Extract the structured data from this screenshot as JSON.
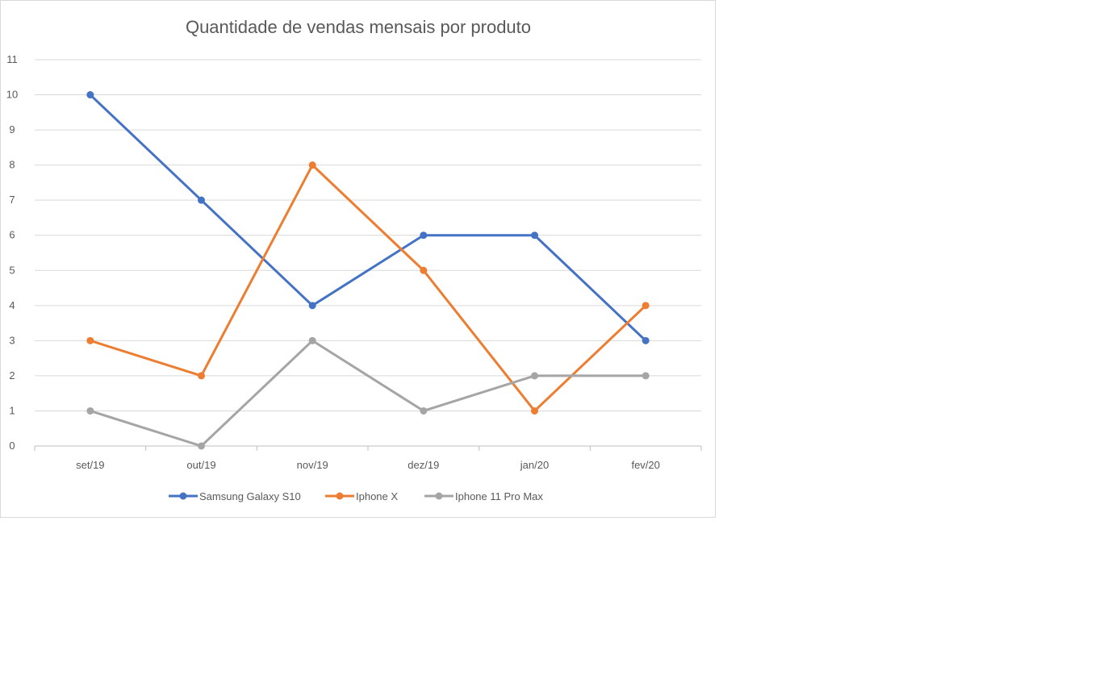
{
  "chart_data": {
    "type": "line",
    "title": "Quantidade de vendas mensais por produto",
    "xlabel": "",
    "ylabel": "",
    "categories": [
      "set/19",
      "out/19",
      "nov/19",
      "dez/19",
      "jan/20",
      "fev/20"
    ],
    "ylim": [
      0,
      11
    ],
    "yticks": [
      "0",
      "1",
      "2",
      "3",
      "4",
      "5",
      "6",
      "7",
      "8",
      "9",
      "10",
      "11"
    ],
    "grid": true,
    "legend_position": "bottom",
    "series": [
      {
        "name": "Samsung Galaxy S10",
        "color": "#4472c4",
        "values": [
          10,
          7,
          4,
          6,
          6,
          3
        ]
      },
      {
        "name": "Iphone X",
        "color": "#ed7d31",
        "values": [
          3,
          2,
          8,
          5,
          1,
          4
        ]
      },
      {
        "name": "Iphone 11 Pro Max",
        "color": "#a5a5a5",
        "values": [
          1,
          0,
          3,
          1,
          2,
          2
        ]
      }
    ]
  }
}
